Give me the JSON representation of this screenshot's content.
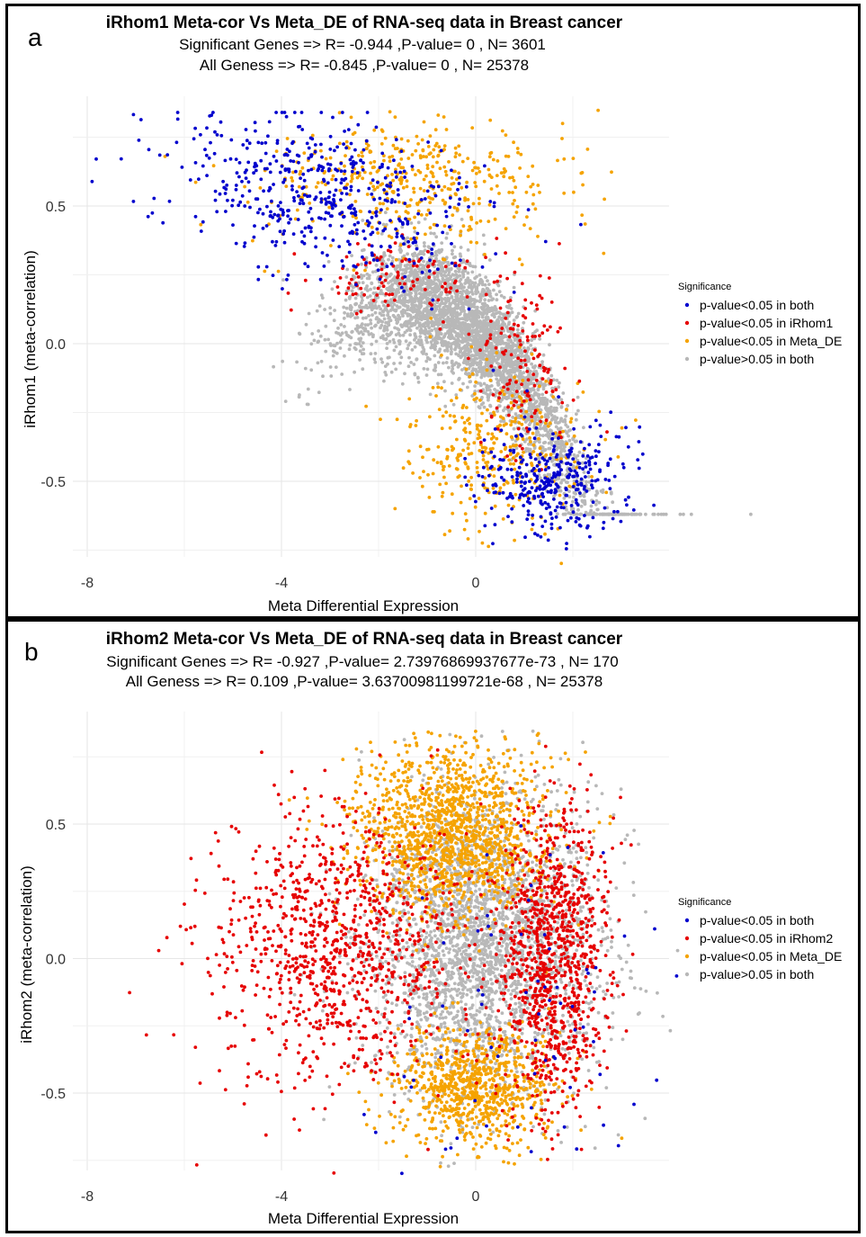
{
  "chart_data": [
    {
      "type": "scatter",
      "panel_letter": "a",
      "title": "iRhom1 Meta-cor Vs Meta_DE of RNA-seq data in Breast cancer",
      "subtitle_lines": [
        "Significant Genes =>  R= -0.944   ,P-value= 0 , N= 3601",
        "All Geness =>  R= -0.845   ,P-value= 0 , N= 25378"
      ],
      "xlabel": "Meta Differential Expression",
      "ylabel": "iRhom1 (meta-correlation)",
      "xlim": [
        -9,
        10
      ],
      "ylim": [
        -0.8,
        0.85
      ],
      "x_ticks": [
        -8,
        -4,
        0
      ],
      "x_tick_labels": [
        "-8",
        "-4",
        "0"
      ],
      "y_ticks": [
        -0.5,
        0.0,
        0.5
      ],
      "y_tick_labels": [
        "-0.5",
        "0.0",
        "0.5"
      ],
      "grid": true,
      "legend_position": "right",
      "legend_title": "Significance",
      "series": [
        {
          "name": "p-value<0.05 in both",
          "color": "#0000cd",
          "approx_count": 1700
        },
        {
          "name": "p-value<0.05 in iRhom1",
          "color": "#e60000",
          "approx_count": 500
        },
        {
          "name": "p-value<0.05 in Meta_DE",
          "color": "#f5a300",
          "approx_count": 1600
        },
        {
          "name": "p-value>0.05 in both",
          "color": "#b8b8b8",
          "approx_count": 21500
        }
      ]
    },
    {
      "type": "scatter",
      "panel_letter": "b",
      "title": "iRhom2 Meta-cor Vs Meta_DE of RNA-seq data in Breast cancer",
      "subtitle_lines": [
        "Significant Genes =>  R= -0.927   ,P-value= 2.73976869937677e-73 , N= 170",
        "All Geness =>  R= 0.109   ,P-value= 3.63700981199721e-68 , N= 25378"
      ],
      "xlabel": "Meta Differential Expression",
      "ylabel": "iRhom2 (meta-correlation)",
      "xlim": [
        -9,
        10
      ],
      "ylim": [
        -0.8,
        0.85
      ],
      "x_ticks": [
        -8,
        -4,
        0
      ],
      "x_tick_labels": [
        "-8",
        "-4",
        "0"
      ],
      "y_ticks": [
        -0.5,
        0.0,
        0.5
      ],
      "y_tick_labels": [
        "-0.5",
        "0.0",
        "0.5"
      ],
      "grid": true,
      "legend_position": "right",
      "legend_title": "Significance",
      "series": [
        {
          "name": "p-value<0.05 in both",
          "color": "#0000cd",
          "approx_count": 170
        },
        {
          "name": "p-value<0.05 in iRhom2",
          "color": "#e60000",
          "approx_count": 4000
        },
        {
          "name": "p-value<0.05 in Meta_DE",
          "color": "#f5a300",
          "approx_count": 4500
        },
        {
          "name": "p-value>0.05 in both",
          "color": "#b8b8b8",
          "approx_count": 16700
        }
      ]
    }
  ]
}
